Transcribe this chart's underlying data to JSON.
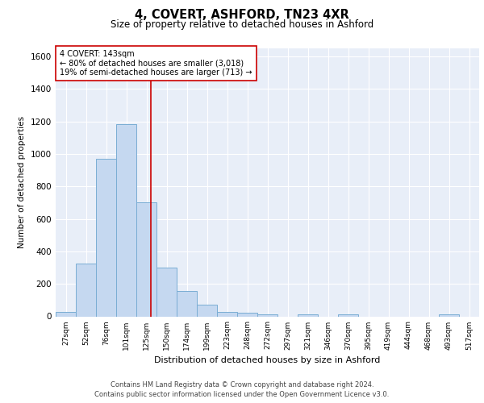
{
  "title": "4, COVERT, ASHFORD, TN23 4XR",
  "subtitle": "Size of property relative to detached houses in Ashford",
  "xlabel": "Distribution of detached houses by size in Ashford",
  "ylabel": "Number of detached properties",
  "footer_line1": "Contains HM Land Registry data © Crown copyright and database right 2024.",
  "footer_line2": "Contains public sector information licensed under the Open Government Licence v3.0.",
  "bar_labels": [
    "27sqm",
    "52sqm",
    "76sqm",
    "101sqm",
    "125sqm",
    "150sqm",
    "174sqm",
    "199sqm",
    "223sqm",
    "248sqm",
    "272sqm",
    "297sqm",
    "321sqm",
    "346sqm",
    "370sqm",
    "395sqm",
    "419sqm",
    "444sqm",
    "468sqm",
    "493sqm",
    "517sqm"
  ],
  "bar_values": [
    25,
    325,
    970,
    1185,
    700,
    300,
    155,
    70,
    28,
    20,
    14,
    0,
    14,
    0,
    12,
    0,
    0,
    0,
    0,
    12,
    0
  ],
  "bar_color": "#c5d8f0",
  "bar_edge_color": "#7aadd4",
  "background_color": "#e8eef8",
  "grid_color": "#ffffff",
  "marker_color": "#cc0000",
  "annotation_title": "4 COVERT: 143sqm",
  "annotation_line1": "← 80% of detached houses are smaller (3,018)",
  "annotation_line2": "19% of semi-detached houses are larger (713) →",
  "ylim": [
    0,
    1650
  ],
  "yticks": [
    0,
    200,
    400,
    600,
    800,
    1000,
    1200,
    1400,
    1600
  ],
  "fig_width": 6.0,
  "fig_height": 5.0,
  "fig_dpi": 100
}
